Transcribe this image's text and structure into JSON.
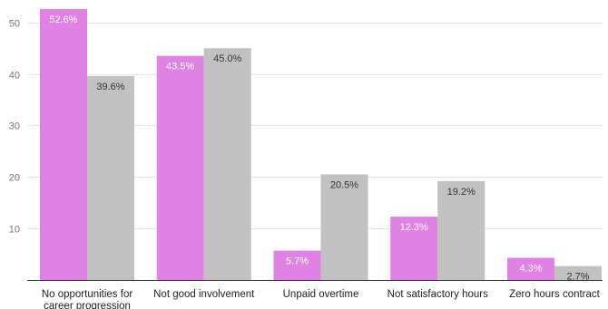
{
  "chart_data": {
    "type": "bar",
    "categories": [
      [
        "No opportunities for",
        "career progression"
      ],
      [
        "Not good involvement"
      ],
      [
        "Unpaid overtime"
      ],
      [
        "Not satisfactory hours"
      ],
      [
        "Zero hours contract"
      ]
    ],
    "series": [
      {
        "color": "#df82e3",
        "values": [
          52.6,
          43.5,
          5.7,
          12.3,
          4.3
        ],
        "labels": [
          "52.6%",
          "43.5%",
          "5.7%",
          "12.3%",
          "4.3%"
        ]
      },
      {
        "color": "#c1c1c1",
        "values": [
          39.6,
          45.0,
          20.5,
          19.2,
          2.7
        ],
        "labels": [
          "39.6%",
          "45.0%",
          "20.5%",
          "19.2%",
          "2.7%"
        ]
      }
    ],
    "yticks": [
      10,
      20,
      30,
      40,
      50
    ],
    "ylim": [
      0,
      54
    ],
    "grid": true,
    "legend": "none"
  }
}
